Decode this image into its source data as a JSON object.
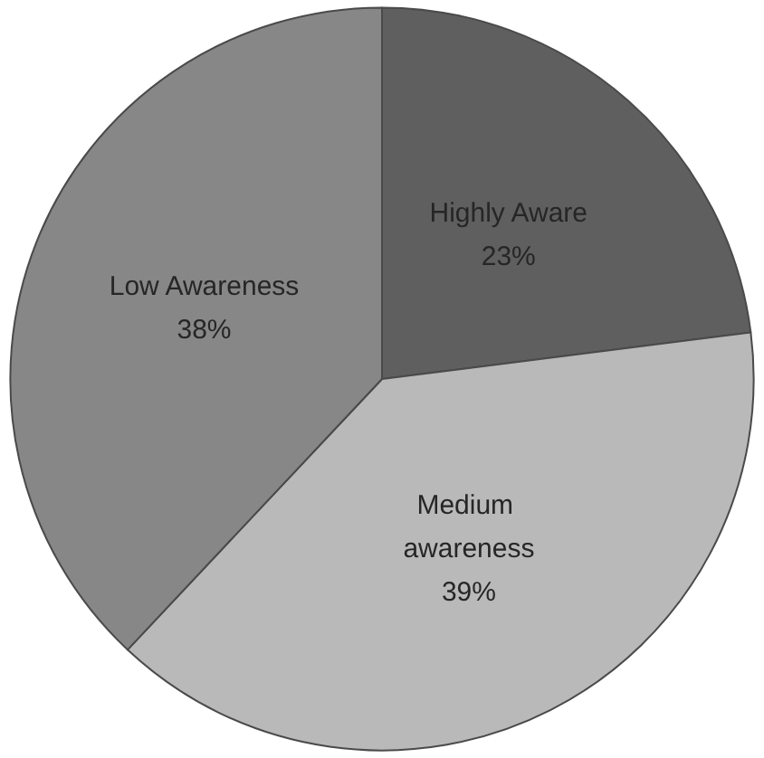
{
  "chart_data": {
    "type": "pie",
    "categories": [
      "Highly Aware",
      "Medium awareness",
      "Low Awareness"
    ],
    "values": [
      23,
      39,
      38
    ],
    "colors": [
      "#5f5f5f",
      "#b9b9b9",
      "#878787"
    ],
    "value_labels": [
      "23%",
      "39%",
      "38%"
    ],
    "legend": false
  }
}
